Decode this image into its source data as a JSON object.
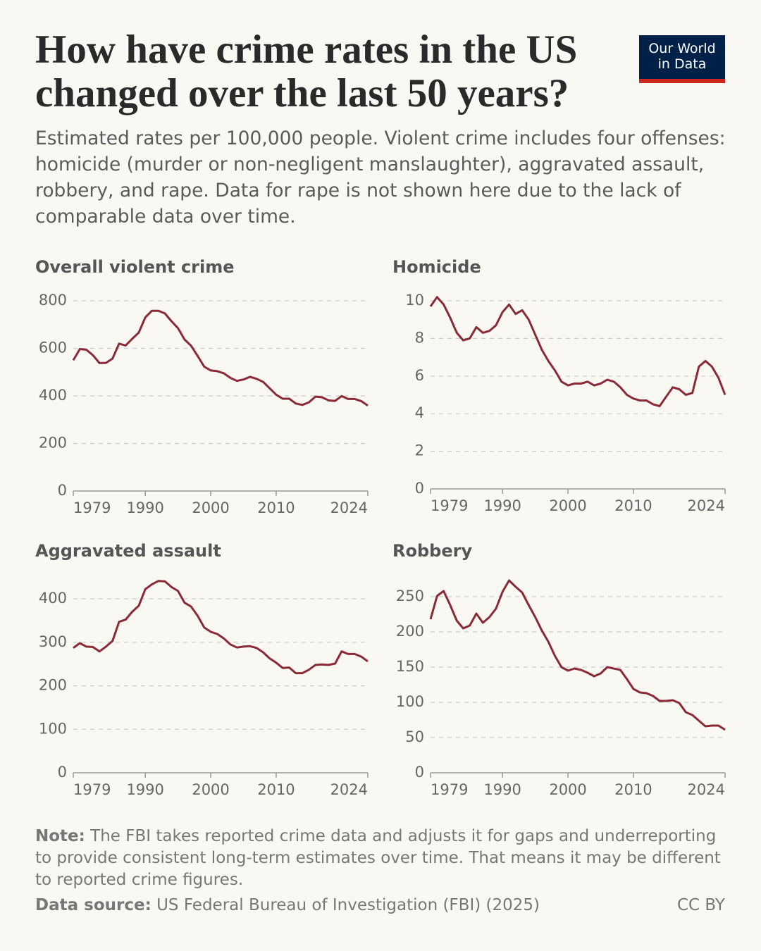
{
  "header": {
    "title": "How have crime rates in the US changed over the last 50 years?",
    "subtitle": "Estimated rates per 100,000 people. Violent crime includes four offenses: homicide (murder or non-negligent manslaughter), aggravated assault, robbery, and rape. Data for rape is not shown here due to the lack of comparable data over time.",
    "logo": [
      "Our World",
      "in Data"
    ]
  },
  "chart_data": [
    {
      "type": "line",
      "title": "Overall violent crime",
      "color": "#8a2a35",
      "grid": true,
      "x": [
        1979,
        1980,
        1981,
        1982,
        1983,
        1984,
        1985,
        1986,
        1987,
        1988,
        1989,
        1990,
        1991,
        1992,
        1993,
        1994,
        1995,
        1996,
        1997,
        1998,
        1999,
        2000,
        2001,
        2002,
        2003,
        2004,
        2005,
        2006,
        2007,
        2008,
        2009,
        2010,
        2011,
        2012,
        2013,
        2014,
        2015,
        2016,
        2017,
        2018,
        2019,
        2020,
        2021,
        2022,
        2023,
        2024
      ],
      "values": [
        550,
        597,
        594,
        571,
        538,
        539,
        557,
        620,
        612,
        640,
        666,
        730,
        758,
        758,
        747,
        714,
        685,
        637,
        611,
        568,
        523,
        507,
        504,
        495,
        476,
        463,
        469,
        480,
        472,
        459,
        432,
        405,
        388,
        388,
        368,
        362,
        373,
        397,
        394,
        381,
        379,
        399,
        387,
        387,
        378,
        359
      ],
      "xlim": [
        1979,
        2024
      ],
      "xticks": [
        1979,
        1990,
        2000,
        2010,
        2024
      ],
      "ylim": [
        0,
        800
      ],
      "yticks": [
        0,
        200,
        400,
        600,
        800
      ]
    },
    {
      "type": "line",
      "title": "Homicide",
      "color": "#8a2a35",
      "grid": true,
      "x": [
        1979,
        1980,
        1981,
        1982,
        1983,
        1984,
        1985,
        1986,
        1987,
        1988,
        1989,
        1990,
        1991,
        1992,
        1993,
        1994,
        1995,
        1996,
        1997,
        1998,
        1999,
        2000,
        2001,
        2002,
        2003,
        2004,
        2005,
        2006,
        2007,
        2008,
        2009,
        2010,
        2011,
        2012,
        2013,
        2014,
        2015,
        2016,
        2017,
        2018,
        2019,
        2020,
        2021,
        2022,
        2023,
        2024
      ],
      "values": [
        9.7,
        10.2,
        9.8,
        9.1,
        8.3,
        7.9,
        8.0,
        8.6,
        8.3,
        8.4,
        8.7,
        9.4,
        9.8,
        9.3,
        9.5,
        9.0,
        8.2,
        7.4,
        6.8,
        6.3,
        5.7,
        5.5,
        5.6,
        5.6,
        5.7,
        5.5,
        5.6,
        5.8,
        5.7,
        5.4,
        5.0,
        4.8,
        4.7,
        4.7,
        4.5,
        4.4,
        4.9,
        5.4,
        5.3,
        5.0,
        5.1,
        6.5,
        6.8,
        6.5,
        5.9,
        5.0
      ],
      "xlim": [
        1979,
        2024
      ],
      "xticks": [
        1979,
        1990,
        2000,
        2010,
        2024
      ],
      "ylim": [
        0,
        10
      ],
      "yticks": [
        0,
        2,
        4,
        6,
        8,
        10
      ]
    },
    {
      "type": "line",
      "title": "Aggravated assault",
      "color": "#8a2a35",
      "grid": true,
      "x": [
        1979,
        1980,
        1981,
        1982,
        1983,
        1984,
        1985,
        1986,
        1987,
        1988,
        1989,
        1990,
        1991,
        1992,
        1993,
        1994,
        1995,
        1996,
        1997,
        1998,
        1999,
        2000,
        2001,
        2002,
        2003,
        2004,
        2005,
        2006,
        2007,
        2008,
        2009,
        2010,
        2011,
        2012,
        2013,
        2014,
        2015,
        2016,
        2017,
        2018,
        2019,
        2020,
        2021,
        2022,
        2023,
        2024
      ],
      "values": [
        287,
        298,
        290,
        289,
        279,
        290,
        303,
        347,
        352,
        370,
        384,
        422,
        433,
        441,
        440,
        427,
        418,
        391,
        382,
        361,
        334,
        324,
        319,
        309,
        295,
        288,
        290,
        291,
        287,
        277,
        263,
        253,
        241,
        242,
        229,
        229,
        237,
        248,
        249,
        248,
        251,
        279,
        273,
        273,
        267,
        256
      ],
      "xlim": [
        1979,
        2024
      ],
      "xticks": [
        1979,
        1990,
        2000,
        2010,
        2024
      ],
      "ylim": [
        0,
        400
      ],
      "yticks": [
        0,
        100,
        200,
        300,
        400
      ]
    },
    {
      "type": "line",
      "title": "Robbery",
      "color": "#8a2a35",
      "grid": true,
      "x": [
        1979,
        1980,
        1981,
        1982,
        1983,
        1984,
        1985,
        1986,
        1987,
        1988,
        1989,
        1990,
        1991,
        1992,
        1993,
        1994,
        1995,
        1996,
        1997,
        1998,
        1999,
        2000,
        2001,
        2002,
        2003,
        2004,
        2005,
        2006,
        2007,
        2008,
        2009,
        2010,
        2011,
        2012,
        2013,
        2014,
        2015,
        2016,
        2017,
        2018,
        2019,
        2020,
        2021,
        2022,
        2023,
        2024
      ],
      "values": [
        218,
        251,
        258,
        238,
        216,
        205,
        209,
        226,
        213,
        221,
        233,
        257,
        273,
        264,
        256,
        238,
        221,
        202,
        186,
        166,
        150,
        145,
        148,
        146,
        142,
        137,
        141,
        150,
        148,
        146,
        133,
        119,
        114,
        113,
        109,
        102,
        102,
        103,
        99,
        86,
        82,
        74,
        66,
        67,
        67,
        61
      ],
      "xlim": [
        1979,
        2024
      ],
      "xticks": [
        1979,
        1990,
        2000,
        2010,
        2024
      ],
      "ylim": [
        0,
        250
      ],
      "yticks": [
        0,
        50,
        100,
        150,
        200,
        250
      ]
    }
  ],
  "footer": {
    "note_label": "Note:",
    "note": "The FBI takes reported crime data and adjusts it for gaps and underreporting to provide consistent long-term estimates over time. That means it may be different to reported crime figures.",
    "source_label": "Data source:",
    "source": "US Federal Bureau of Investigation (FBI) (2025)",
    "license": "CC BY"
  }
}
